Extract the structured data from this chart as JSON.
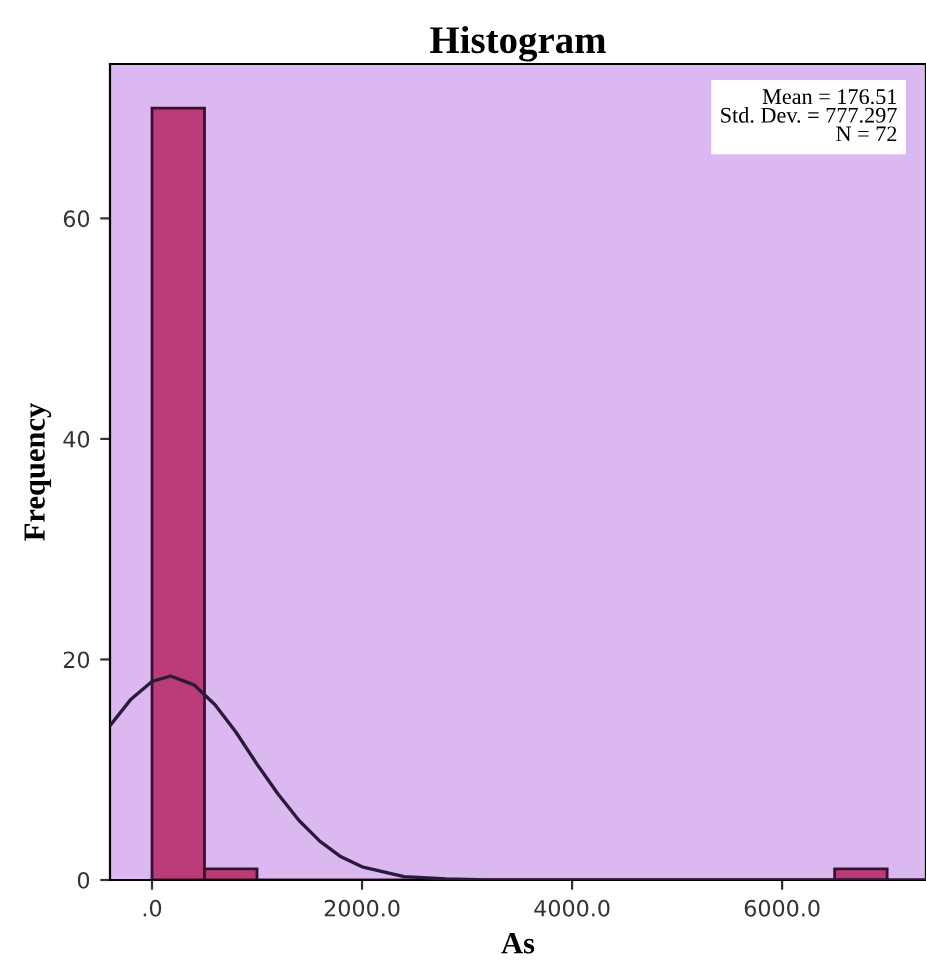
{
  "chart_data": {
    "type": "histogram",
    "title": "Histogram",
    "xlabel": "As",
    "ylabel": "Frequency",
    "bins": [
      0,
      500,
      1000,
      1500,
      2000,
      2500,
      3000,
      3500,
      4000,
      4500,
      5000,
      5500,
      6000,
      6500,
      7000
    ],
    "series": [
      {
        "color": "#bb3b78",
        "values": [
          70,
          1,
          0,
          0,
          0,
          0,
          0,
          0,
          0,
          0,
          0,
          0,
          0,
          1
        ]
      },
      {
        "type": "line",
        "color": "#2a1a3a",
        "x": [
          -400,
          -200,
          0,
          176.5,
          400,
          600,
          800,
          1000,
          1200,
          1400,
          1600,
          1800,
          2000,
          2400,
          2800,
          3200,
          7370
        ],
        "values": [
          14.0,
          16.4,
          18.0,
          18.5,
          17.7,
          15.9,
          13.4,
          10.5,
          7.8,
          5.4,
          3.5,
          2.1,
          1.2,
          0.3,
          0.1,
          0,
          0
        ]
      }
    ],
    "xlim": [
      -400,
      7370
    ],
    "ylim": [
      0,
      74
    ],
    "xticks": [
      {
        "value": 0,
        "label": ".0"
      },
      {
        "value": 2000,
        "label": "2000.0"
      },
      {
        "value": 4000,
        "label": "4000.0"
      },
      {
        "value": 6000,
        "label": "6000.0"
      }
    ],
    "yticks": [
      0,
      20,
      40,
      60
    ],
    "annotations": [
      "Mean = 176.51\nStd. Dev. = 777.297\nN = 72"
    ],
    "grid": false,
    "legend": false
  }
}
